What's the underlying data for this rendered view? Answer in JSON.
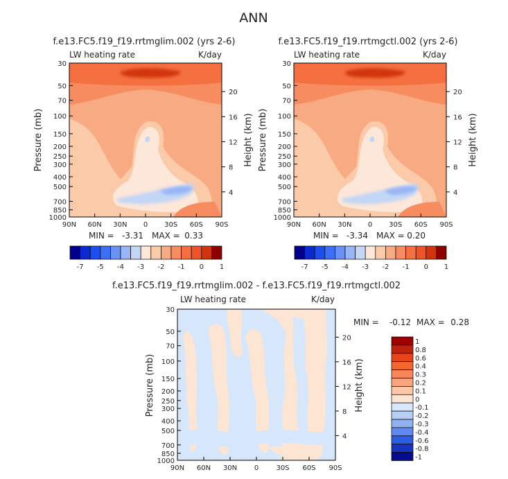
{
  "page_title": "ANN",
  "chart_data": [
    {
      "type": "heatmap",
      "title": "f.e13.FC5.f19_f19.rrtmglim.002 (yrs 2-6)",
      "left_label": "LW heating rate",
      "right_label": "K/day",
      "ylabel": "Pressure (mb)",
      "y2label": "Height (km)",
      "xticks": [
        "90N",
        "60N",
        "30N",
        "0",
        "30S",
        "60S",
        "90S"
      ],
      "yticks": [
        "30",
        "50",
        "70",
        "100",
        "150",
        "200",
        "250",
        "300",
        "400",
        "500",
        "700",
        "850",
        "1000"
      ],
      "y2ticks": [
        "20",
        "16",
        "12",
        "8",
        "4"
      ],
      "stats": {
        "min_label": "MIN =",
        "min": "-3.31",
        "max_label": "MAX =",
        "max": "0.33"
      }
    },
    {
      "type": "heatmap",
      "title": "f.e13.FC5.f19_f19.rrtmgctl.002 (yrs 2-6)",
      "left_label": "LW heating rate",
      "right_label": "K/day",
      "ylabel": "Pressure (mb)",
      "y2label": "Height (km)",
      "xticks": [
        "90N",
        "60N",
        "30N",
        "0",
        "30S",
        "60S",
        "90S"
      ],
      "yticks": [
        "30",
        "50",
        "70",
        "100",
        "150",
        "200",
        "250",
        "300",
        "400",
        "500",
        "700",
        "850",
        "1000"
      ],
      "y2ticks": [
        "20",
        "16",
        "12",
        "8",
        "4"
      ],
      "stats": {
        "min_label": "MIN =",
        "min": "-3.34",
        "max_label": "MAX =",
        "max": "0.20"
      }
    },
    {
      "type": "heatmap",
      "title": "f.e13.FC5.f19_f19.rrtmglim.002 - f.e13.FC5.f19_f19.rrtmgctl.002",
      "left_label": "LW heating rate",
      "right_label": "K/day",
      "ylabel": "Pressure (mb)",
      "y2label": "Height (km)",
      "xticks": [
        "90N",
        "60N",
        "30N",
        "0",
        "30S",
        "60S",
        "90S"
      ],
      "yticks": [
        "30",
        "50",
        "70",
        "100",
        "150",
        "200",
        "250",
        "300",
        "400",
        "500",
        "700",
        "850",
        "1000"
      ],
      "y2ticks": [
        "20",
        "16",
        "12",
        "8",
        "4"
      ],
      "stats": {
        "min_label": "MIN =",
        "min": "-0.12",
        "max_label": "MAX =",
        "max": "0.28"
      }
    }
  ],
  "colorbar_top": {
    "labels": [
      "-7",
      "-5",
      "-4",
      "-3",
      "-2",
      "-1",
      "0",
      "1"
    ],
    "colors": [
      "#00008b",
      "#0a2ad0",
      "#1a4ef0",
      "#3d6ff5",
      "#6a91f5",
      "#98b5f5",
      "#c3d6f5",
      "#fde7d8",
      "#fbcaa9",
      "#f8aa82",
      "#f68c5f",
      "#f47040",
      "#ee5428",
      "#d2340e",
      "#8c0000"
    ]
  },
  "colorbar_diff": {
    "labels": [
      "1",
      "0.8",
      "0.6",
      "0.4",
      "0.3",
      "0.2",
      "0.1",
      "0",
      "-0.1",
      "-0.2",
      "-0.3",
      "-0.4",
      "-0.6",
      "-0.8",
      "-1"
    ],
    "colors": [
      "#9e0000",
      "#c0210c",
      "#e8431a",
      "#f4662f",
      "#f7875a",
      "#f9a680",
      "#fbc7a6",
      "#fde5d3",
      "#d6e7fb",
      "#b7cff5",
      "#8fb0f3",
      "#5f88f0",
      "#2d5de0",
      "#1634c0",
      "#040b8c"
    ]
  }
}
